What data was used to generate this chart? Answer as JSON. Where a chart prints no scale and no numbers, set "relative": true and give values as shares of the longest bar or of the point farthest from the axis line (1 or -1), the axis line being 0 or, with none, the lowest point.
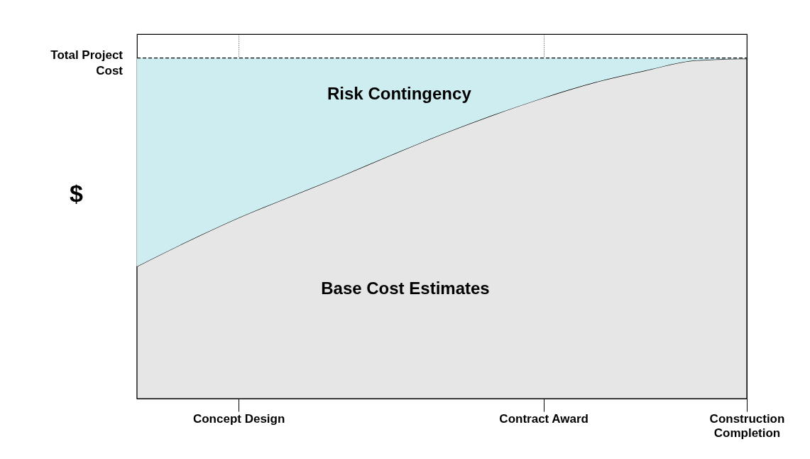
{
  "chart_data": {
    "type": "area",
    "relative": true,
    "stacked": true,
    "ylabel": "$",
    "categories": [
      null,
      null,
      "Concept Design",
      null,
      null,
      null,
      null,
      null,
      "Contract Award",
      null,
      null,
      null,
      "Construction Completion"
    ],
    "grid": "x",
    "series": [
      {
        "name": "Base Cost Estimates",
        "color": "#e6e6e6",
        "values": [
          0.388,
          0.462,
          0.531,
          0.592,
          0.652,
          0.715,
          0.776,
          0.832,
          0.883,
          0.928,
          0.963,
          0.993,
          0.998
        ]
      },
      {
        "name": "Risk Contingency",
        "color": "#cdedf0",
        "values": [
          0.612,
          0.538,
          0.469,
          0.408,
          0.348,
          0.285,
          0.224,
          0.168,
          0.117,
          0.072,
          0.037,
          0.007,
          0.002
        ]
      }
    ],
    "ref_lines": [
      {
        "axis": "y",
        "value": 1,
        "label": "Total Project Cost",
        "line_style": "dashed"
      }
    ]
  }
}
